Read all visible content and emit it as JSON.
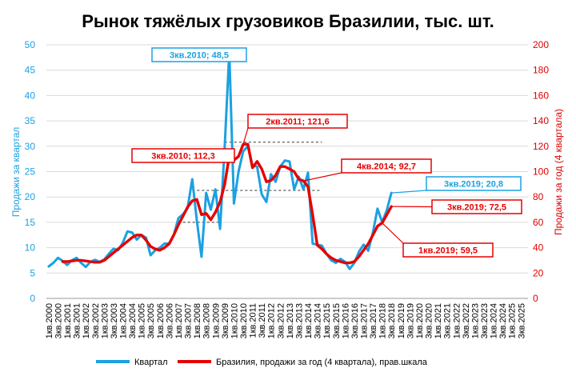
{
  "colors": {
    "quarter": "#1ba1e2",
    "annual": "#e60000",
    "grid": "#d9d9d9"
  },
  "chart_data": {
    "type": "line",
    "title": "Рынок тяжёлых грузовиков Бразилии, тыс. шт.",
    "ylabel_left": "Продажи за квартал",
    "ylabel_right": "Продажи за год (4 квартала)",
    "ylim_left": [
      0,
      50
    ],
    "ylim_right": [
      0,
      200
    ],
    "yticks_left": [
      "0",
      "5",
      "10",
      "15",
      "20",
      "25",
      "30",
      "35",
      "40",
      "45",
      "50"
    ],
    "yticks_right": [
      "0",
      "20",
      "40",
      "60",
      "80",
      "100",
      "120",
      "140",
      "160",
      "180",
      "200"
    ],
    "grid": true,
    "legend_position": "bottom",
    "x_tick_labels": [
      "1кв.2000",
      "3кв.2000",
      "1кв.2001",
      "3кв.2001",
      "1кв.2002",
      "3кв.2002",
      "1кв.2003",
      "3кв.2003",
      "1кв.2004",
      "3кв.2004",
      "1кв.2005",
      "3кв.2005",
      "1кв.2006",
      "3кв.2006",
      "1кв.2007",
      "3кв.2007",
      "1кв.2008",
      "3кв.2008",
      "1кв.2009",
      "3кв.2009",
      "1кв.2010",
      "3кв.2010",
      "1кв.2011",
      "3кв.2011",
      "1кв.2012",
      "3кв.2012",
      "1кв.2013",
      "3кв.2013",
      "1кв.2014",
      "3кв.2014",
      "1кв.2015",
      "3кв.2015",
      "1кв.2016",
      "3кв.2016",
      "1кв.2017",
      "3кв.2017",
      "1кв.2018",
      "3кв.2018",
      "1кв.2019",
      "3кв.2019",
      "1кв.2020",
      "3кв.2020",
      "1кв.2021",
      "3кв.2021",
      "1кв.2022",
      "3кв.2022",
      "1кв.2023",
      "3кв.2023",
      "1кв.2024",
      "3кв.2024",
      "1кв.2025",
      "3кв.2025"
    ],
    "series": [
      {
        "name": "Квартал",
        "axis": "left",
        "values": [
          6.3,
          7.0,
          8.0,
          7.4,
          6.6,
          7.5,
          8.0,
          7.0,
          6.2,
          7.2,
          7.6,
          7.2,
          7.7,
          8.8,
          9.8,
          9.5,
          11.0,
          13.2,
          13.0,
          11.6,
          12.5,
          12.0,
          8.5,
          9.5,
          10.0,
          10.8,
          10.8,
          12.5,
          15.8,
          16.6,
          17.8,
          23.5,
          15.3,
          8.2,
          20.8,
          17.5,
          21.5,
          13.7,
          30.0,
          48.5,
          18.7,
          25.0,
          29.0,
          30.0,
          26.2,
          26.0,
          20.5,
          19.0,
          24.5,
          23.0,
          26.0,
          27.2,
          27.0,
          21.5,
          24.0,
          21.5,
          24.8,
          10.8,
          10.6,
          10.4,
          8.8,
          7.5,
          7.0,
          7.8,
          7.2,
          5.8,
          7.0,
          9.2,
          10.6,
          9.4,
          13.0,
          17.7,
          15.0,
          17.4,
          20.8
        ]
      },
      {
        "name": "Бразилия, продажи за год (4 квартала),  прав.шкала",
        "axis": "right",
        "values": [
          null,
          null,
          null,
          29.0,
          29.0,
          29.5,
          30.0,
          30.0,
          29.5,
          29.0,
          28.5,
          28.5,
          30.0,
          33.0,
          36.0,
          39.0,
          42.0,
          45.0,
          48.0,
          50.0,
          50.0,
          46.0,
          41.0,
          39.0,
          38.0,
          40.0,
          43.0,
          50.0,
          58.0,
          65.0,
          72.0,
          77.0,
          78.0,
          66.0,
          67.0,
          62.0,
          68.0,
          76.0,
          90.0,
          112.3,
          109.0,
          112.0,
          121.6,
          121.6,
          103.0,
          108.0,
          102.0,
          92.0,
          93.0,
          97.0,
          104.0,
          104.0,
          102.0,
          100.0,
          94.0,
          92.7,
          88.0,
          66.0,
          42.0,
          39.0,
          35.0,
          32.0,
          30.0,
          29.0,
          28.0,
          28.0,
          29.0,
          33.0,
          38.0,
          43.0,
          50.0,
          57.0,
          59.5,
          66.0,
          72.5
        ]
      }
    ],
    "reference_lines_left": [
      {
        "from_index": 38,
        "to_index": 59,
        "value": 30.8
      },
      {
        "from_index": 31,
        "to_index": 59,
        "value": 21.3
      },
      {
        "from_index": 29,
        "to_index": 37,
        "value": 15.0
      }
    ],
    "annotations": [
      {
        "text": "3кв.2010; 48,5",
        "series": 0,
        "index": 39
      },
      {
        "text": "2кв.2011; 121,6",
        "series": 1,
        "index": 42
      },
      {
        "text": "3кв.2010; 112,3",
        "series": 1,
        "index": 39
      },
      {
        "text": "4кв.2014; 92,7",
        "series": 1,
        "index": 55
      },
      {
        "text": "3кв.2019; 20,8",
        "series": 0,
        "index": 74
      },
      {
        "text": "3кв.2019; 72,5",
        "series": 1,
        "index": 74
      },
      {
        "text": "1кв.2019; 59,5",
        "series": 1,
        "index": 72
      }
    ]
  }
}
